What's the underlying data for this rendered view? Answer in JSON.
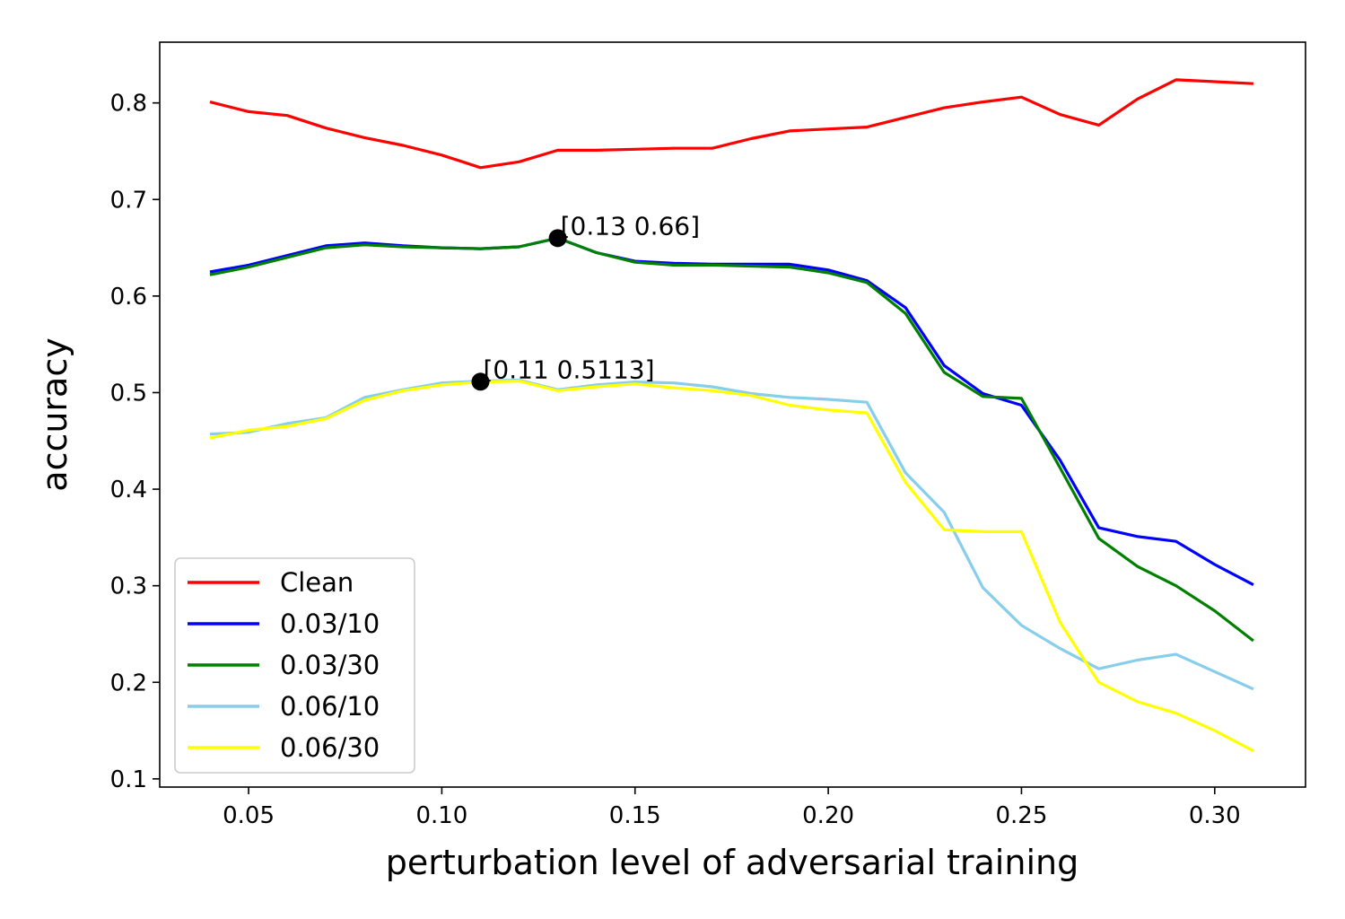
{
  "chart_data": {
    "type": "line",
    "title": "",
    "xlabel": "perturbation level of adversarial training",
    "ylabel": "accuracy",
    "xlim": [
      0.027,
      0.3235
    ],
    "ylim": [
      0.0915,
      0.8629
    ],
    "xticks": [
      0.05,
      0.1,
      0.15,
      0.2,
      0.25,
      0.3
    ],
    "xtick_labels": [
      "0.05",
      "0.10",
      "0.15",
      "0.20",
      "0.25",
      "0.30"
    ],
    "yticks": [
      0.1,
      0.2,
      0.3,
      0.4,
      0.5,
      0.6,
      0.7,
      0.8
    ],
    "ytick_labels": [
      "0.1",
      "0.2",
      "0.3",
      "0.4",
      "0.5",
      "0.6",
      "0.7",
      "0.8"
    ],
    "grid": false,
    "legend_position": "lower-left",
    "x": [
      0.04,
      0.05,
      0.06,
      0.07,
      0.08,
      0.09,
      0.1,
      0.11,
      0.12,
      0.13,
      0.14,
      0.15,
      0.16,
      0.17,
      0.18,
      0.19,
      0.2,
      0.21,
      0.22,
      0.23,
      0.24,
      0.25,
      0.26,
      0.27,
      0.28,
      0.29,
      0.3,
      0.31
    ],
    "series": [
      {
        "name": "Clean",
        "color": "#ff0000",
        "values": [
          0.801,
          0.791,
          0.787,
          0.774,
          0.764,
          0.756,
          0.746,
          0.733,
          0.739,
          0.751,
          0.751,
          0.752,
          0.753,
          0.753,
          0.763,
          0.771,
          0.773,
          0.775,
          0.785,
          0.795,
          0.801,
          0.806,
          0.788,
          0.777,
          0.804,
          0.824,
          0.822,
          0.82
        ]
      },
      {
        "name": "0.03/10",
        "color": "#0000ff",
        "values": [
          0.625,
          0.632,
          0.642,
          0.652,
          0.655,
          0.652,
          0.65,
          0.649,
          0.651,
          0.66,
          0.645,
          0.636,
          0.634,
          0.633,
          0.633,
          0.633,
          0.627,
          0.616,
          0.588,
          0.528,
          0.499,
          0.487,
          0.43,
          0.36,
          0.351,
          0.346,
          0.322,
          0.301
        ]
      },
      {
        "name": "0.03/30",
        "color": "#008000",
        "values": [
          0.622,
          0.63,
          0.64,
          0.65,
          0.653,
          0.651,
          0.65,
          0.649,
          0.651,
          0.66,
          0.645,
          0.635,
          0.632,
          0.632,
          0.631,
          0.63,
          0.624,
          0.614,
          0.582,
          0.521,
          0.496,
          0.494,
          0.422,
          0.349,
          0.32,
          0.3,
          0.274,
          0.243
        ]
      },
      {
        "name": "0.06/10",
        "color": "#87ceeb",
        "values": [
          0.457,
          0.459,
          0.468,
          0.474,
          0.495,
          0.503,
          0.51,
          0.512,
          0.513,
          0.503,
          0.508,
          0.511,
          0.51,
          0.506,
          0.499,
          0.495,
          0.493,
          0.49,
          0.417,
          0.376,
          0.298,
          0.259,
          0.235,
          0.214,
          0.223,
          0.229,
          0.211,
          0.193
        ]
      },
      {
        "name": "0.06/30",
        "color": "#ffff00",
        "values": [
          0.453,
          0.461,
          0.465,
          0.473,
          0.492,
          0.502,
          0.508,
          0.511,
          0.512,
          0.502,
          0.506,
          0.509,
          0.505,
          0.502,
          0.497,
          0.487,
          0.482,
          0.479,
          0.407,
          0.358,
          0.356,
          0.356,
          0.262,
          0.2,
          0.18,
          0.168,
          0.15,
          0.129
        ]
      }
    ],
    "annotations": [
      {
        "x": 0.13,
        "y": 0.66,
        "text": "[0.13 0.66]"
      },
      {
        "x": 0.11,
        "y": 0.5113,
        "text": "[0.11 0.5113]"
      }
    ]
  }
}
